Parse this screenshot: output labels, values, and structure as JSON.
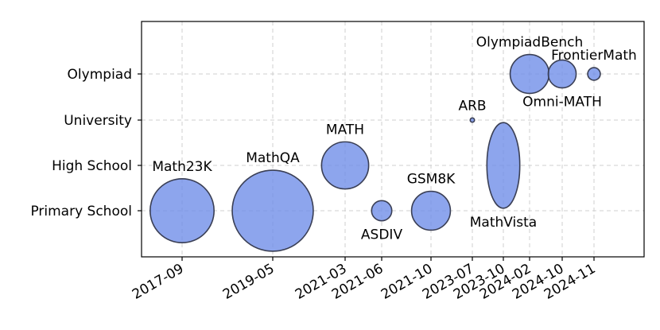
{
  "chart_data": {
    "type": "scatter",
    "title": "",
    "xlabel": "",
    "ylabel": "",
    "x_categories": [
      "2017-09",
      "2019-05",
      "2021-03",
      "2021-06",
      "2021-10",
      "2023-07",
      "2023-10",
      "2024-02",
      "2024-10",
      "2024-11"
    ],
    "y_categories": [
      "Primary School",
      "High School",
      "University",
      "Olympiad"
    ],
    "grid": true,
    "marker_color": "#6d8ce8",
    "points": [
      {
        "name": "Math23K",
        "x": "2017-09",
        "y": "Primary School",
        "size": 23000,
        "label_pos": "above"
      },
      {
        "name": "MathQA",
        "x": "2019-05",
        "y": "Primary School",
        "size": 37000,
        "label_pos": "above"
      },
      {
        "name": "MATH",
        "x": "2021-03",
        "y": "High School",
        "size": 12500,
        "label_pos": "above"
      },
      {
        "name": "ASDIV",
        "x": "2021-06",
        "y": "Primary School",
        "size": 2300,
        "label_pos": "below"
      },
      {
        "name": "GSM8K",
        "x": "2021-10",
        "y": "Primary School",
        "size": 8500,
        "label_pos": "above"
      },
      {
        "name": "ARB",
        "x": "2023-07",
        "y": "University",
        "size": 105,
        "label_pos": "above"
      },
      {
        "name": "MathVista",
        "x": "2023-10",
        "y": "High School",
        "size": 6100,
        "label_pos": "below",
        "stretch": 2.6
      },
      {
        "name": "OlympiadBench",
        "x": "2024-02",
        "y": "Olympiad",
        "size": 8500,
        "label_pos": "above"
      },
      {
        "name": "Omni-MATH",
        "x": "2024-10",
        "y": "Olympiad",
        "size": 4400,
        "label_pos": "below"
      },
      {
        "name": "FrontierMath",
        "x": "2024-11",
        "y": "Olympiad",
        "size": 900,
        "label_pos": "above"
      }
    ]
  }
}
